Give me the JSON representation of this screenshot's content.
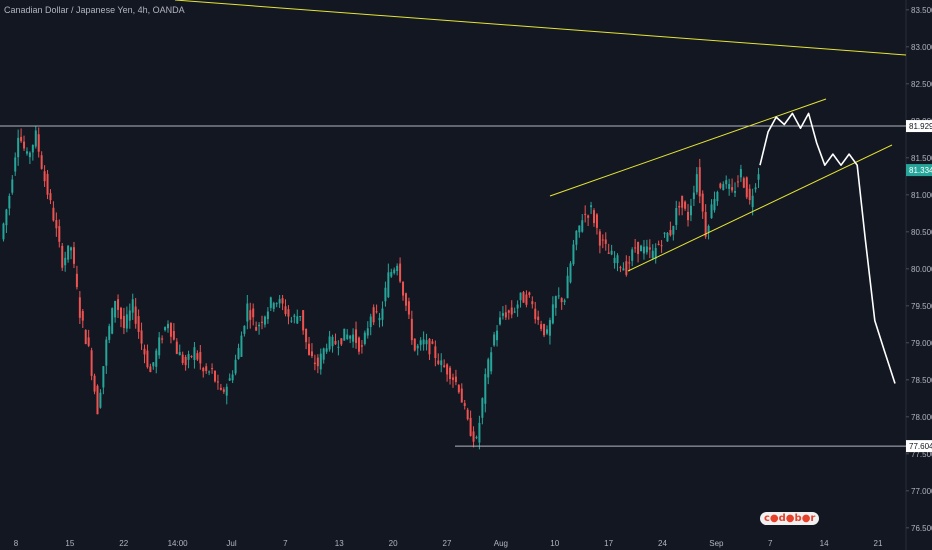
{
  "chart_data": {
    "type": "candlestick",
    "title": "Canadian Dollar / Japanese Yen, 4h, OANDA",
    "ylim": [
      76.2,
      83.7
    ],
    "y_ticks": [
      "83.500",
      "83.000",
      "82.500",
      "82.000",
      "81.500",
      "81.000",
      "80.500",
      "80.000",
      "79.500",
      "79.000",
      "78.500",
      "78.000",
      "77.500",
      "77.000",
      "76.500"
    ],
    "x_ticks": [
      "8",
      "15",
      "22",
      "14:00",
      "Jul",
      "7",
      "13",
      "20",
      "27",
      "Aug",
      "10",
      "17",
      "24",
      "Sep",
      "7",
      "14",
      "21"
    ],
    "price_labels": [
      {
        "text": "81.929",
        "value": 81.929,
        "role": "resistance"
      },
      {
        "text": "81.334",
        "value": 81.334,
        "role": "last"
      },
      {
        "text": "77.604",
        "value": 77.604,
        "role": "support"
      }
    ],
    "price_path_closes": [
      80.4,
      81.0,
      81.85,
      81.5,
      81.8,
      81.2,
      80.7,
      80.1,
      80.3,
      79.4,
      78.9,
      78.1,
      79.0,
      79.6,
      79.2,
      79.5,
      79.0,
      78.6,
      79.0,
      79.3,
      78.9,
      78.7,
      78.9,
      78.6,
      78.6,
      78.3,
      78.5,
      78.9,
      79.5,
      79.2,
      79.4,
      79.6,
      79.5,
      79.3,
      79.4,
      78.8,
      78.7,
      79.0,
      79.0,
      79.1,
      79.1,
      78.9,
      79.4,
      79.3,
      79.9,
      80.1,
      79.5,
      78.9,
      79.0,
      78.9,
      78.7,
      78.6,
      78.4,
      77.9,
      77.65,
      78.5,
      79.1,
      79.4,
      79.4,
      79.6,
      79.6,
      79.3,
      79.1,
      79.6,
      79.6,
      80.3,
      80.7,
      80.8,
      80.4,
      80.2,
      80.1,
      80.0,
      80.3,
      80.25,
      80.2,
      80.4,
      80.5,
      80.9,
      80.7,
      81.3,
      80.5,
      81.0,
      81.2,
      81.0,
      81.3,
      80.9,
      81.334
    ],
    "series": [
      {
        "name": "",
        "kind": "projection",
        "color": "#ffffff",
        "points": [
          [
            0,
            81.4
          ],
          [
            0.06,
            81.85
          ],
          [
            0.12,
            82.05
          ],
          [
            0.18,
            81.95
          ],
          [
            0.24,
            82.1
          ],
          [
            0.3,
            81.9
          ],
          [
            0.36,
            82.1
          ],
          [
            0.42,
            81.7
          ],
          [
            0.48,
            81.4
          ],
          [
            0.54,
            81.55
          ],
          [
            0.6,
            81.4
          ],
          [
            0.66,
            81.55
          ],
          [
            0.72,
            81.4
          ],
          [
            0.78,
            80.4
          ],
          [
            0.85,
            79.3
          ],
          [
            0.92,
            78.9
          ],
          [
            1.0,
            78.45
          ]
        ]
      }
    ],
    "colors": {
      "background": "#131722",
      "up": "#26a69a",
      "down": "#ef5350",
      "trendline": "#e5e532",
      "horizontal": "#b2b5be",
      "last_label_bg": "#26a69a"
    },
    "grid": false
  }
}
